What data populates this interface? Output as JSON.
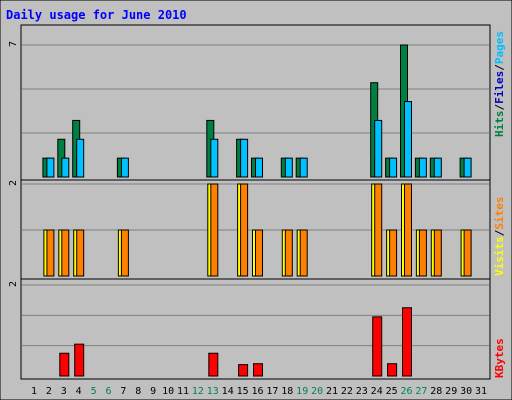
{
  "title": "Daily usage for June 2010",
  "colors": {
    "background": "#c0c0c0",
    "panel": "#c0c0c0",
    "title": "#0000ff",
    "hits": "#008040",
    "files": "#0080ff",
    "pages": "#00c0ff",
    "visits": "#ffff00",
    "sites": "#ff8000",
    "kbytes": "#ff0000",
    "weekday": "#000000",
    "weekend": "#00805c"
  },
  "legend": {
    "top": [
      {
        "text": "Hits",
        "color": "#008040"
      },
      {
        "text": "/",
        "color": "#000000"
      },
      {
        "text": "Files",
        "color": "#0000c0"
      },
      {
        "text": "/",
        "color": "#000000"
      },
      {
        "text": "Pages",
        "color": "#00c0ff"
      }
    ],
    "middle": [
      {
        "text": "Visits",
        "color": "#ffff00"
      },
      {
        "text": "/",
        "color": "#000000"
      },
      {
        "text": "Sites",
        "color": "#ff8000"
      }
    ],
    "bottom": [
      {
        "text": "KBytes",
        "color": "#ff0000"
      }
    ]
  },
  "chart_data": {
    "type": "bar",
    "title": "Daily usage for June 2010",
    "categories": [
      "1",
      "2",
      "3",
      "4",
      "5",
      "6",
      "7",
      "8",
      "9",
      "10",
      "11",
      "12",
      "13",
      "14",
      "15",
      "16",
      "17",
      "18",
      "19",
      "20",
      "21",
      "22",
      "23",
      "24",
      "25",
      "26",
      "27",
      "28",
      "29",
      "30",
      "31"
    ],
    "weekend_days": [
      "5",
      "6",
      "12",
      "13",
      "19",
      "20",
      "26",
      "27"
    ],
    "panels": [
      {
        "name": "hits-files-pages",
        "max_label": "7",
        "ymax": 7,
        "gridlines": 3,
        "series": [
          {
            "name": "Hits",
            "values": [
              0,
              1,
              2,
              3,
              0,
              0,
              1,
              0,
              0,
              0,
              0,
              0,
              3,
              0,
              2,
              1,
              0,
              1,
              1,
              0,
              0,
              0,
              0,
              5,
              1,
              7,
              1,
              1,
              0,
              1,
              0
            ]
          },
          {
            "name": "Files",
            "values": [
              0,
              0,
              0,
              1,
              0,
              0,
              0,
              0,
              0,
              0,
              0,
              0,
              0,
              0,
              0,
              0,
              0,
              0,
              0,
              0,
              0,
              0,
              0,
              1,
              0,
              1,
              0,
              0,
              0,
              0,
              0
            ]
          },
          {
            "name": "Pages",
            "values": [
              0,
              1,
              1,
              2,
              0,
              0,
              1,
              0,
              0,
              0,
              0,
              0,
              2,
              0,
              2,
              1,
              0,
              1,
              1,
              0,
              0,
              0,
              0,
              3,
              1,
              4,
              1,
              1,
              0,
              1,
              0
            ]
          }
        ]
      },
      {
        "name": "visits-sites",
        "max_label": "2",
        "ymax": 2,
        "gridlines": 2,
        "series": [
          {
            "name": "Visits",
            "values": [
              0,
              1,
              1,
              1,
              0,
              0,
              1,
              0,
              0,
              0,
              0,
              0,
              2,
              0,
              2,
              1,
              0,
              1,
              1,
              0,
              0,
              0,
              0,
              2,
              1,
              2,
              1,
              1,
              0,
              1,
              0
            ]
          },
          {
            "name": "Sites",
            "values": [
              0,
              1,
              1,
              1,
              0,
              0,
              1,
              0,
              0,
              0,
              0,
              0,
              2,
              0,
              2,
              1,
              0,
              1,
              1,
              0,
              0,
              0,
              0,
              2,
              1,
              2,
              1,
              1,
              0,
              1,
              0
            ]
          }
        ]
      },
      {
        "name": "kbytes",
        "max_label": "2",
        "ymax": 2,
        "gridlines": 3,
        "series": [
          {
            "name": "KBytes",
            "values": [
              0,
              0,
              0.5,
              0.7,
              0,
              0,
              0,
              0,
              0,
              0,
              0,
              0,
              0.5,
              0,
              0.25,
              0.27,
              0,
              0,
              0,
              0,
              0,
              0,
              0,
              1.3,
              0.27,
              1.5,
              0,
              0,
              0,
              0,
              0
            ]
          }
        ]
      }
    ]
  }
}
